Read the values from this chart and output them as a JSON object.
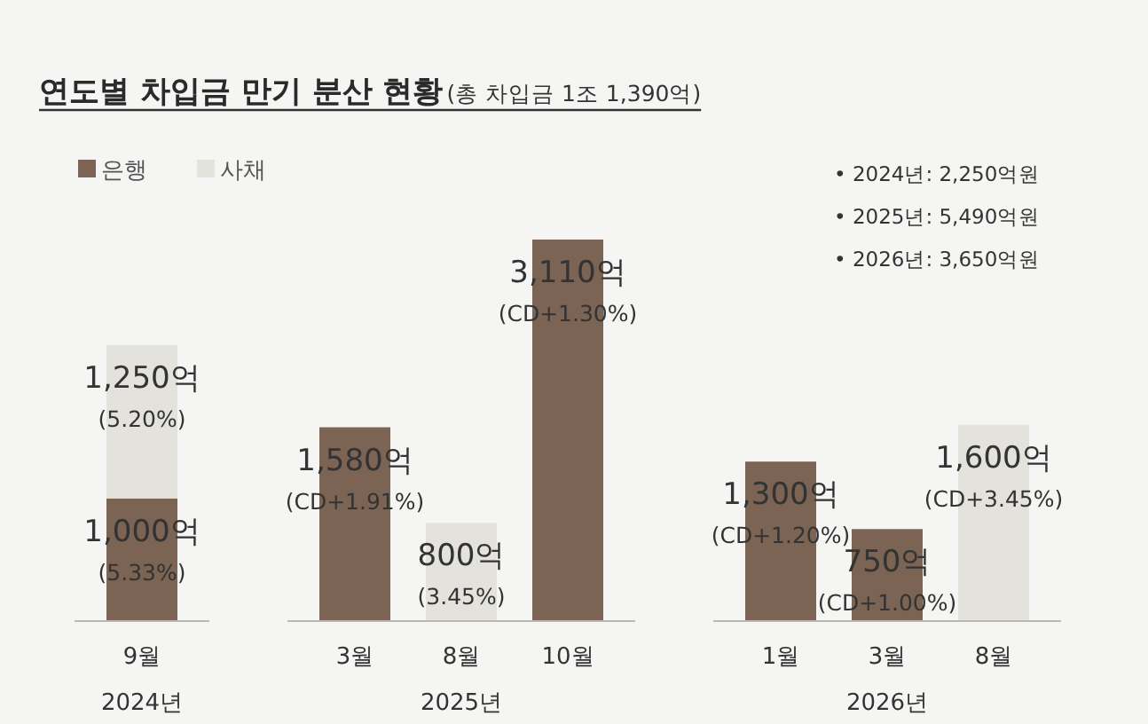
{
  "chart_data": {
    "type": "bar",
    "stacked": true,
    "title": "연도별 차입금 만기 분산 현황",
    "subtitle": "(총 차입금 1조 1,390억)",
    "legend": "top left",
    "categories": [
      "9월",
      null,
      "3월",
      "8월",
      "10월",
      null,
      "1월",
      "3월",
      "8월"
    ],
    "series": [
      {
        "name": "은행",
        "color": "#7b6453",
        "values": [
          1000,
          null,
          1580,
          null,
          3110,
          null,
          1300,
          750,
          null
        ],
        "value_labels": [
          "1,000억\n(5.33%)",
          null,
          "1,580억\n(CD+1.91%)",
          null,
          "3,110억\n(CD+1.30%)",
          null,
          "1,300억\n(CD+1.20%)",
          "750억\n(CD+1.00%)",
          null
        ]
      },
      {
        "name": "사채",
        "color": "#e4e2dd",
        "values": [
          1250,
          null,
          null,
          800,
          null,
          null,
          null,
          null,
          1600
        ],
        "value_labels": [
          "1,250억\n(5.20%)",
          null,
          null,
          "800억\n(3.45%)",
          null,
          null,
          null,
          null,
          "1,600억\n(CD+3.45%)"
        ]
      }
    ],
    "annotations": [
      "2024년",
      "2025년",
      "2026년",
      "• 2024년: 2,250억원",
      "• 2025년: 5,490억원",
      "• 2026년: 3,650억원"
    ]
  }
}
